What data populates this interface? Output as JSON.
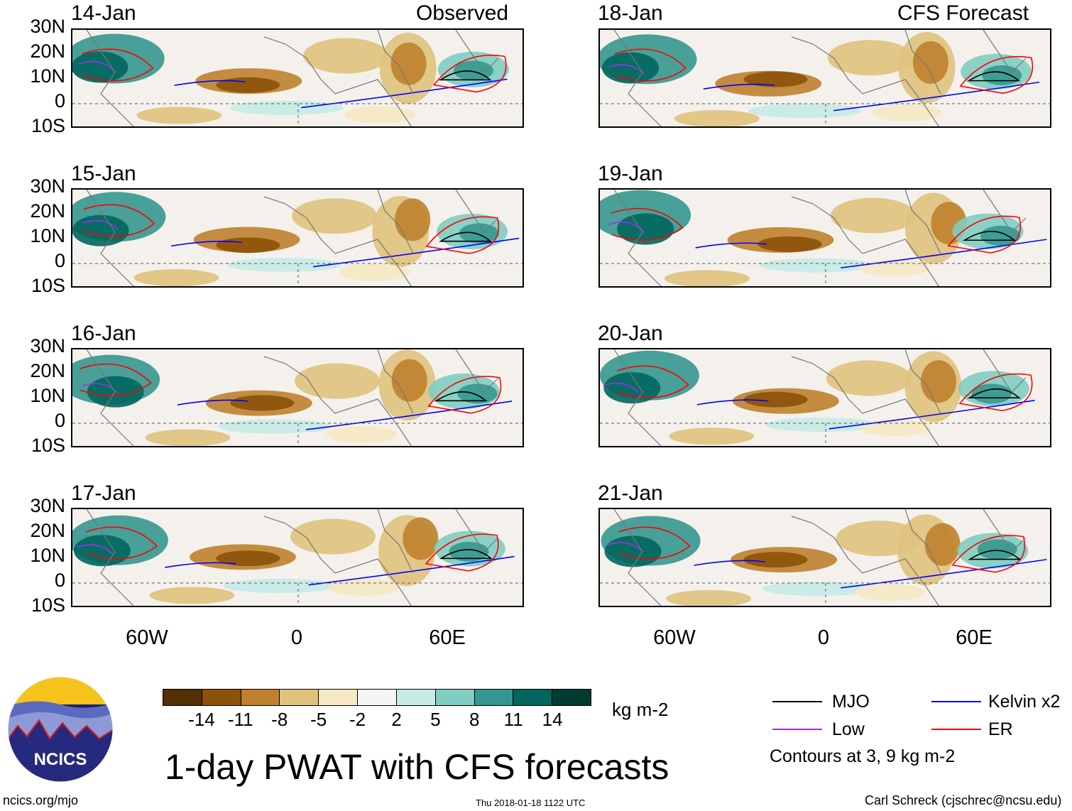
{
  "header": {
    "observed_label": "Observed",
    "forecast_label": "CFS Forecast"
  },
  "panels_left": [
    {
      "date": "14-Jan"
    },
    {
      "date": "15-Jan"
    },
    {
      "date": "16-Jan"
    },
    {
      "date": "17-Jan"
    }
  ],
  "panels_right": [
    {
      "date": "18-Jan"
    },
    {
      "date": "19-Jan"
    },
    {
      "date": "20-Jan"
    },
    {
      "date": "21-Jan"
    }
  ],
  "axes": {
    "lat_labels": [
      "30N",
      "20N",
      "10N",
      "0",
      "10S"
    ],
    "lon_labels": [
      "60W",
      "0",
      "60E"
    ]
  },
  "colorbar": {
    "labels": [
      "-14",
      "-11",
      "-8",
      "-5",
      "-2",
      "2",
      "5",
      "8",
      "11",
      "14"
    ],
    "units": "kg m-2",
    "colors": [
      "#543005",
      "#8c510a",
      "#bf812d",
      "#dfc27d",
      "#f6e8c3",
      "#f5f5f5",
      "#c7eae5",
      "#80cdc1",
      "#35978f",
      "#01665e",
      "#003c30"
    ]
  },
  "legend": {
    "items": [
      {
        "label": "MJO",
        "color": "#000000"
      },
      {
        "label": "Kelvin x2",
        "color": "#0000ff"
      },
      {
        "label": "Low",
        "color": "#9a30ee"
      },
      {
        "label": "ER",
        "color": "#ff0000"
      }
    ],
    "contours_note": "Contours at 3, 9 kg m-2"
  },
  "title": "1-day PWAT with CFS forecasts",
  "logo_text": "NCICS",
  "footer": {
    "left": "ncics.org/mjo",
    "center": "Thu 2018-01-18 1122 UTC",
    "right": "Carl Schreck (cjschrec@ncsu.edu)"
  }
}
